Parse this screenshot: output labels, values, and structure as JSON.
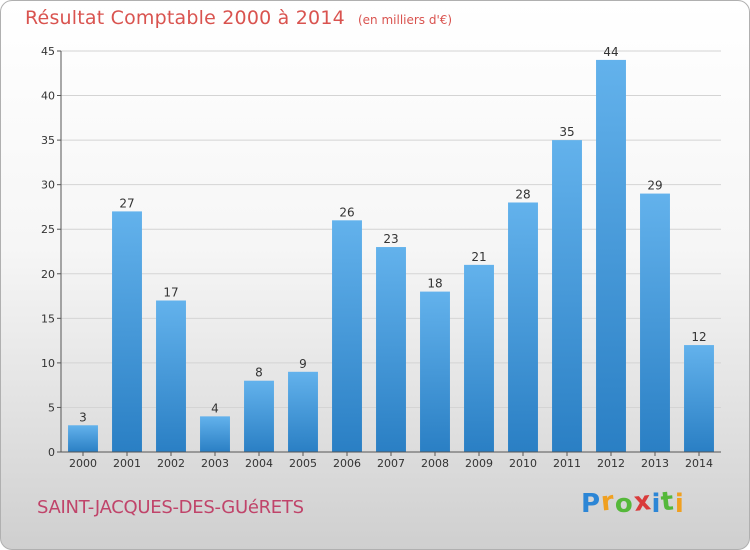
{
  "title": "Résultat Comptable 2000 à 2014",
  "unit": "(en milliers d'€)",
  "commune": "SAINT-JACQUES-DES-GUéRETS",
  "logo": {
    "text": "Proxiti",
    "letters": [
      {
        "ch": "P",
        "color": "#2c86d6"
      },
      {
        "ch": "r",
        "color": "#f0a020"
      },
      {
        "ch": "o",
        "color": "#55b83a"
      },
      {
        "ch": "x",
        "color": "#d93b3b"
      },
      {
        "ch": "i",
        "color": "#2c86d6"
      },
      {
        "ch": "t",
        "color": "#55b83a"
      },
      {
        "ch": "i",
        "color": "#f0a020"
      }
    ]
  },
  "colors": {
    "bar_top": "#63b2ec",
    "bar_bottom": "#2a7fc4",
    "title": "#d9534f",
    "commune": "#c0446a"
  },
  "chart_data": {
    "type": "bar",
    "title": "Résultat Comptable 2000 à 2014",
    "ylabel": "(en milliers d'€)",
    "xlabel": "",
    "categories": [
      "2000",
      "2001",
      "2002",
      "2003",
      "2004",
      "2005",
      "2006",
      "2007",
      "2008",
      "2009",
      "2010",
      "2011",
      "2012",
      "2013",
      "2014"
    ],
    "values": [
      3,
      27,
      17,
      4,
      8,
      9,
      26,
      23,
      18,
      21,
      28,
      35,
      44,
      29,
      12
    ],
    "ylim": [
      0,
      45
    ],
    "yticks": [
      0,
      5,
      10,
      15,
      20,
      25,
      30,
      35,
      40,
      45
    ],
    "grid": true
  }
}
